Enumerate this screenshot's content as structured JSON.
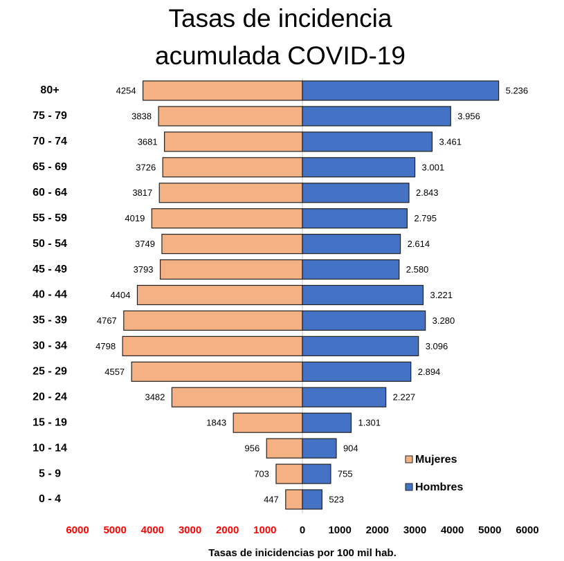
{
  "chart_data": {
    "type": "pyramid",
    "title": "Tasas de incidencia acumulada COVID-19",
    "x_label": "Tasas de inicidencias por 100 mil hab.",
    "categories": [
      "80+",
      "75 - 79",
      "70 - 74",
      "65 - 69",
      "60 - 64",
      "55 - 59",
      "50 - 54",
      "45 - 49",
      "40 - 44",
      "35 - 39",
      "30 - 34",
      "25 - 29",
      "20 - 24",
      "15 - 19",
      "10 - 14",
      "5 - 9",
      "0 - 4"
    ],
    "series": [
      {
        "name": "Mujeres",
        "color": "#f4b183",
        "values": [
          4254,
          3838,
          3681,
          3726,
          3817,
          4019,
          3749,
          3793,
          4404,
          4767,
          4798,
          4557,
          3482,
          1843,
          956,
          703,
          447
        ]
      },
      {
        "name": "Hombres",
        "color": "#4472c4",
        "values": [
          5236,
          3956,
          3461,
          3001,
          2843,
          2795,
          2614,
          2580,
          3221,
          3280,
          3096,
          2894,
          2227,
          1301,
          904,
          755,
          523
        ],
        "value_labels": [
          "5.236",
          "3.956",
          "3.461",
          "3.001",
          "2.843",
          "2.795",
          "2.614",
          "2.580",
          "3.221",
          "3.280",
          "3.096",
          "2.894",
          "2.227",
          "1.301",
          "904",
          "755",
          "523"
        ]
      }
    ],
    "xlim": [
      -6000,
      6000
    ],
    "xticks": [
      {
        "value": -6000,
        "label": "6000"
      },
      {
        "value": -5000,
        "label": "5000"
      },
      {
        "value": -4000,
        "label": "4000"
      },
      {
        "value": -3000,
        "label": "3000"
      },
      {
        "value": -2000,
        "label": "2000"
      },
      {
        "value": -1000,
        "label": "1000"
      },
      0,
      1000,
      2000,
      3000,
      4000,
      5000,
      6000
    ],
    "negative_tick_color": "#ff0000",
    "legend": "lower right"
  }
}
